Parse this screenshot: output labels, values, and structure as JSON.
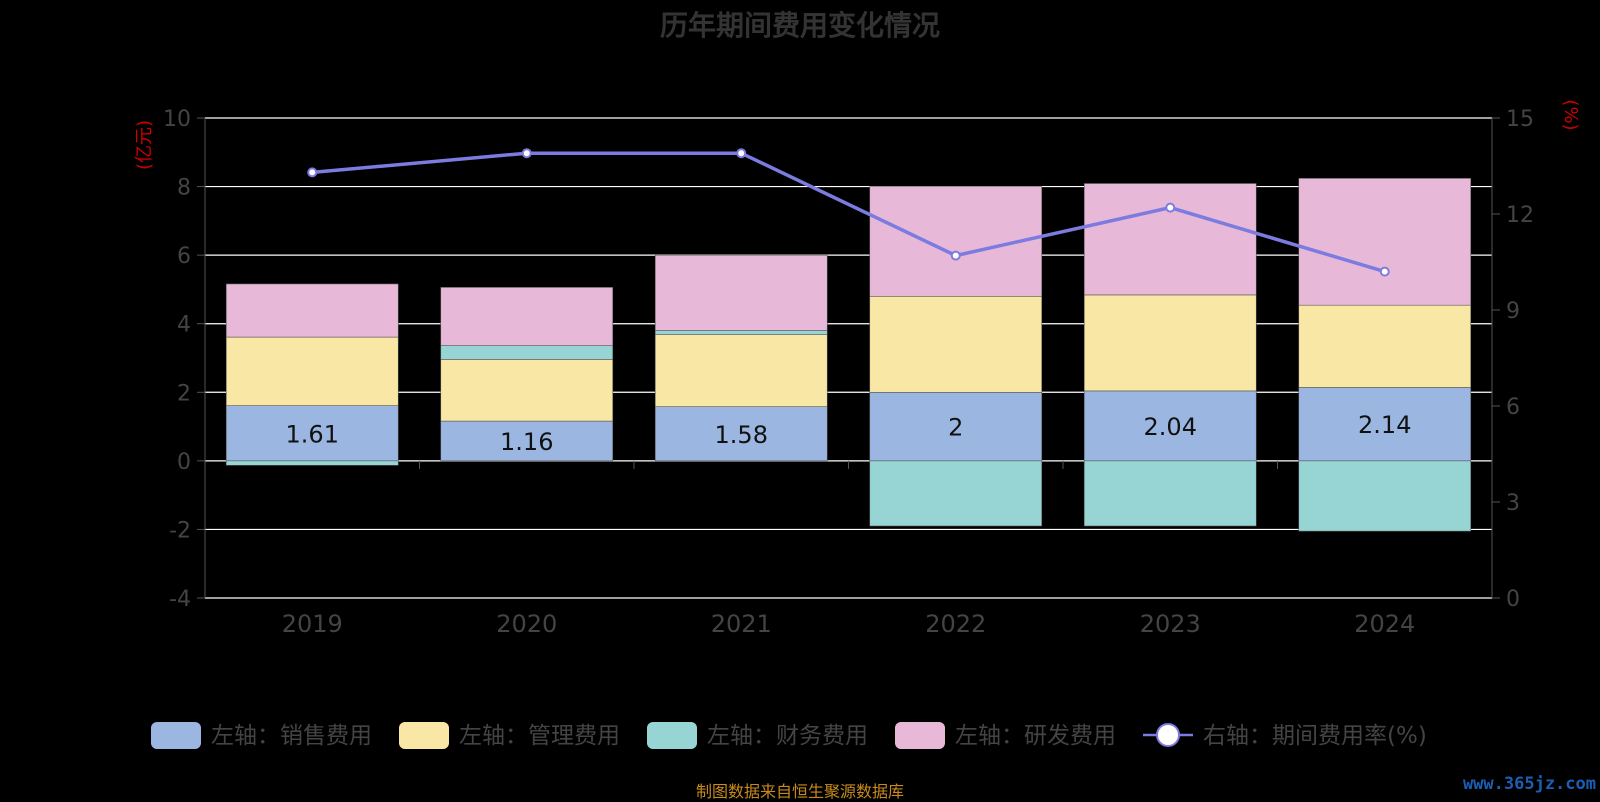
{
  "title": "历年期间费用变化情况",
  "source": "制图数据来自恒生聚源数据库",
  "watermark": "www.365jz.com",
  "chart_data": {
    "type": "bar",
    "stacked": true,
    "categories": [
      "2019",
      "2020",
      "2021",
      "2022",
      "2023",
      "2024"
    ],
    "y_left": {
      "label": "(亿元)",
      "min": -4,
      "max": 10,
      "ticks": [
        -4,
        -2,
        0,
        2,
        4,
        6,
        8,
        10
      ]
    },
    "y_right": {
      "label": "(%)",
      "min": 0,
      "max": 15,
      "ticks": [
        0,
        3,
        6,
        9,
        12,
        15
      ]
    },
    "grid": true,
    "legend_position": "bottom",
    "series": [
      {
        "name": "左轴：销售费用",
        "color": "#9bb7e1",
        "axis": "left",
        "values": [
          1.61,
          1.16,
          1.58,
          2,
          2.04,
          2.14
        ],
        "labels": [
          "1.61",
          "1.16",
          "1.58",
          "2",
          "2.04",
          "2.14"
        ]
      },
      {
        "name": "左轴：管理费用",
        "color": "#f9e8a5",
        "axis": "left",
        "values": [
          2.0,
          1.8,
          2.1,
          2.8,
          2.8,
          2.4
        ]
      },
      {
        "name": "左轴：财务费用",
        "color": "#97d4d4",
        "axis": "left",
        "values": [
          -0.13,
          0.4,
          0.12,
          -1.9,
          -1.9,
          -2.05
        ]
      },
      {
        "name": "左轴：研发费用",
        "color": "#e8b8d8",
        "axis": "left",
        "values": [
          1.55,
          1.7,
          2.2,
          3.2,
          3.25,
          3.7
        ]
      },
      {
        "name": "右轴：期间费用率(%)",
        "color": "#7b7be0",
        "type": "line",
        "axis": "right",
        "values": [
          13.3,
          13.9,
          13.9,
          10.7,
          12.2,
          10.2
        ]
      }
    ]
  }
}
